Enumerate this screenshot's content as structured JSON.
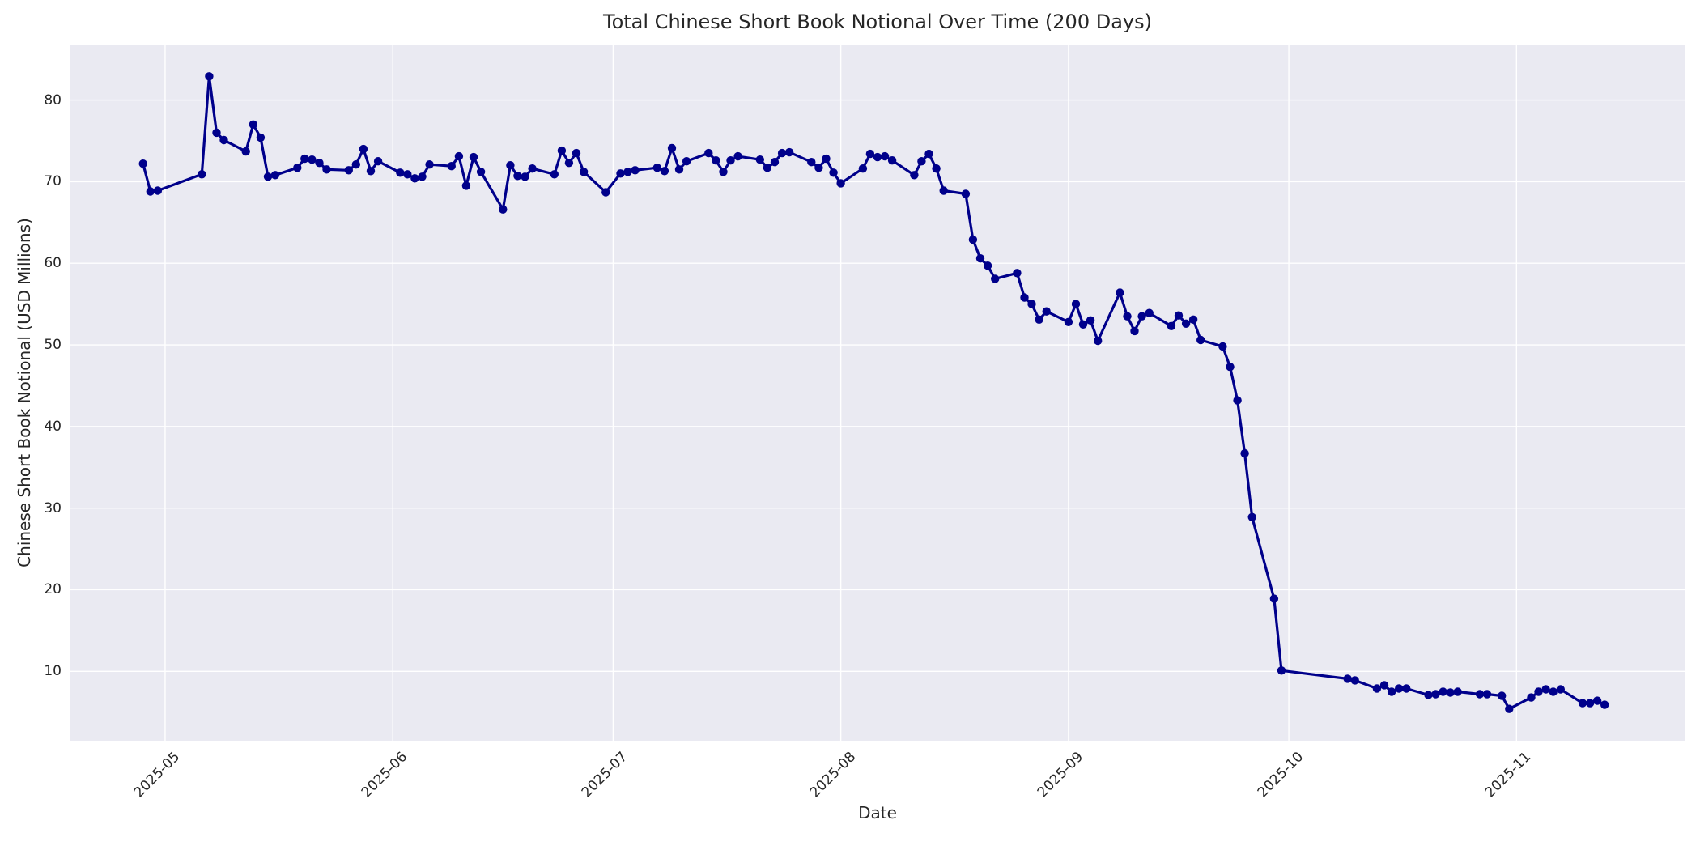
{
  "chart_data": {
    "type": "line",
    "title": "Total Chinese Short Book Notional Over Time (200 Days)",
    "xlabel": "Date",
    "ylabel": "Chinese Short Book Notional (USD Millions)",
    "legend_position": "none",
    "grid": true,
    "plot_bg": "#EAEAF2",
    "grid_color": "#FFFFFF",
    "text_color": "#262626",
    "line_color": "#00008B",
    "marker": "circle",
    "xlim": [
      "2025-04-18",
      "2025-11-24"
    ],
    "ylim": [
      1.5,
      86.8
    ],
    "x_tick_dates": [
      "2025-05-01",
      "2025-06-01",
      "2025-07-01",
      "2025-08-01",
      "2025-09-01",
      "2025-10-01",
      "2025-11-01"
    ],
    "x_tick_labels": [
      "2025-05",
      "2025-06",
      "2025-07",
      "2025-08",
      "2025-09",
      "2025-10",
      "2025-11"
    ],
    "y_ticks": [
      10,
      20,
      30,
      40,
      50,
      60,
      70,
      80
    ],
    "series": [
      {
        "name": "Total Chinese Short Book Notional",
        "x": [
          "2025-04-28",
          "2025-04-29",
          "2025-04-30",
          "2025-05-06",
          "2025-05-07",
          "2025-05-08",
          "2025-05-09",
          "2025-05-12",
          "2025-05-13",
          "2025-05-14",
          "2025-05-15",
          "2025-05-16",
          "2025-05-19",
          "2025-05-20",
          "2025-05-21",
          "2025-05-22",
          "2025-05-23",
          "2025-05-26",
          "2025-05-27",
          "2025-05-28",
          "2025-05-29",
          "2025-05-30",
          "2025-06-02",
          "2025-06-03",
          "2025-06-04",
          "2025-06-05",
          "2025-06-06",
          "2025-06-09",
          "2025-06-10",
          "2025-06-11",
          "2025-06-12",
          "2025-06-13",
          "2025-06-16",
          "2025-06-17",
          "2025-06-18",
          "2025-06-19",
          "2025-06-20",
          "2025-06-23",
          "2025-06-24",
          "2025-06-25",
          "2025-06-26",
          "2025-06-27",
          "2025-06-30",
          "2025-07-02",
          "2025-07-03",
          "2025-07-04",
          "2025-07-07",
          "2025-07-08",
          "2025-07-09",
          "2025-07-10",
          "2025-07-11",
          "2025-07-14",
          "2025-07-15",
          "2025-07-16",
          "2025-07-17",
          "2025-07-18",
          "2025-07-21",
          "2025-07-22",
          "2025-07-23",
          "2025-07-24",
          "2025-07-25",
          "2025-07-28",
          "2025-07-29",
          "2025-07-30",
          "2025-07-31",
          "2025-08-01",
          "2025-08-04",
          "2025-08-05",
          "2025-08-06",
          "2025-08-07",
          "2025-08-08",
          "2025-08-11",
          "2025-08-12",
          "2025-08-13",
          "2025-08-14",
          "2025-08-15",
          "2025-08-18",
          "2025-08-19",
          "2025-08-20",
          "2025-08-21",
          "2025-08-22",
          "2025-08-25",
          "2025-08-26",
          "2025-08-27",
          "2025-08-28",
          "2025-08-29",
          "2025-09-01",
          "2025-09-02",
          "2025-09-03",
          "2025-09-04",
          "2025-09-05",
          "2025-09-08",
          "2025-09-09",
          "2025-09-10",
          "2025-09-11",
          "2025-09-12",
          "2025-09-15",
          "2025-09-16",
          "2025-09-17",
          "2025-09-18",
          "2025-09-19",
          "2025-09-22",
          "2025-09-23",
          "2025-09-24",
          "2025-09-25",
          "2025-09-26",
          "2025-09-29",
          "2025-09-30",
          "2025-10-09",
          "2025-10-10",
          "2025-10-13",
          "2025-10-14",
          "2025-10-15",
          "2025-10-16",
          "2025-10-17",
          "2025-10-20",
          "2025-10-21",
          "2025-10-22",
          "2025-10-23",
          "2025-10-24",
          "2025-10-27",
          "2025-10-28",
          "2025-10-30",
          "2025-10-31",
          "2025-11-03",
          "2025-11-04",
          "2025-11-05",
          "2025-11-06",
          "2025-11-07",
          "2025-11-10",
          "2025-11-11",
          "2025-11-12",
          "2025-11-13"
        ],
        "y": [
          72.2,
          68.8,
          68.9,
          70.9,
          82.9,
          76.0,
          75.1,
          73.7,
          77.0,
          75.4,
          70.6,
          70.8,
          71.7,
          72.8,
          72.7,
          72.3,
          71.5,
          71.4,
          72.1,
          74.0,
          71.3,
          72.5,
          71.1,
          70.9,
          70.4,
          70.6,
          72.1,
          71.9,
          73.1,
          69.5,
          73.0,
          71.2,
          66.6,
          72.0,
          70.7,
          70.6,
          71.6,
          70.9,
          73.8,
          72.3,
          73.5,
          71.2,
          68.7,
          71.0,
          71.2,
          71.4,
          71.7,
          71.3,
          74.1,
          71.5,
          72.5,
          73.5,
          72.6,
          71.2,
          72.6,
          73.1,
          72.7,
          71.7,
          72.4,
          73.5,
          73.6,
          72.4,
          71.7,
          72.8,
          71.1,
          69.8,
          71.6,
          73.4,
          73.0,
          73.1,
          72.6,
          70.8,
          72.5,
          73.4,
          71.6,
          68.9,
          68.5,
          62.9,
          60.6,
          59.7,
          58.1,
          58.8,
          55.8,
          55.0,
          53.1,
          54.1,
          52.8,
          55.0,
          52.5,
          53.0,
          50.5,
          56.4,
          53.5,
          51.7,
          53.5,
          53.9,
          52.3,
          53.6,
          52.6,
          53.1,
          50.6,
          49.8,
          47.3,
          43.2,
          36.7,
          28.9,
          18.9,
          10.1,
          9.1,
          8.9,
          7.9,
          8.3,
          7.5,
          7.9,
          7.9,
          7.1,
          7.2,
          7.5,
          7.4,
          7.5,
          7.2,
          7.2,
          7.0,
          5.4,
          6.8,
          7.5,
          7.8,
          7.5,
          7.8,
          6.1,
          6.1,
          6.4,
          5.9
        ]
      }
    ]
  }
}
